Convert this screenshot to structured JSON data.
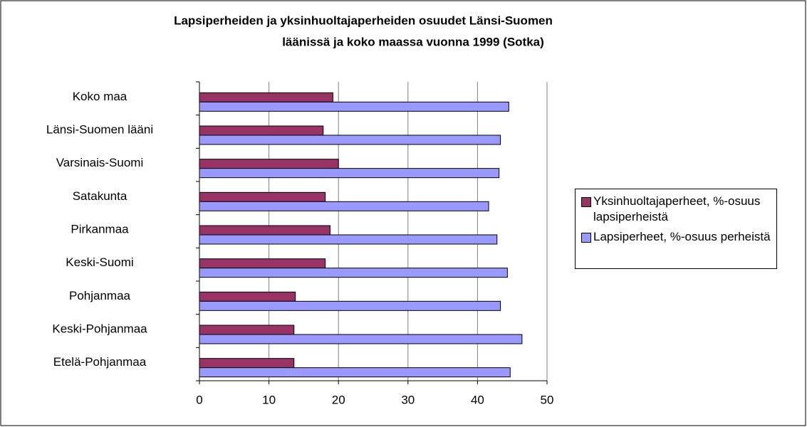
{
  "chart_data": {
    "type": "bar",
    "orientation": "horizontal",
    "title": [
      "Lapsiperheiden ja yksinhuoltajaperheiden osuudet Länsi-Suomen",
      "läänissä ja koko maassa vuonna 1999 (Sotka)"
    ],
    "categories": [
      "Koko maa",
      "Länsi-Suomen lääni",
      "Varsinais-Suomi",
      "Satakunta",
      "Pirkanmaa",
      "Keski-Suomi",
      "Pohjanmaa",
      "Keski-Pohjanmaa",
      "Etelä-Pohjanmaa"
    ],
    "series": [
      {
        "name": "Yksinhuoltajaperheet, %-osuus lapsiperheistä",
        "color": "#993366",
        "values": [
          19.2,
          17.8,
          20.0,
          18.1,
          18.8,
          18.1,
          13.8,
          13.6,
          13.6
        ]
      },
      {
        "name": "Lapsiperheet, %-osuus perheistä",
        "color": "#9999ff",
        "values": [
          44.5,
          43.3,
          43.1,
          41.6,
          42.8,
          44.3,
          43.3,
          46.4,
          44.7
        ]
      }
    ],
    "xlim": [
      0,
      50
    ],
    "xticks": [
      0,
      10,
      20,
      30,
      40,
      50
    ],
    "grid": true,
    "legend": "right"
  }
}
